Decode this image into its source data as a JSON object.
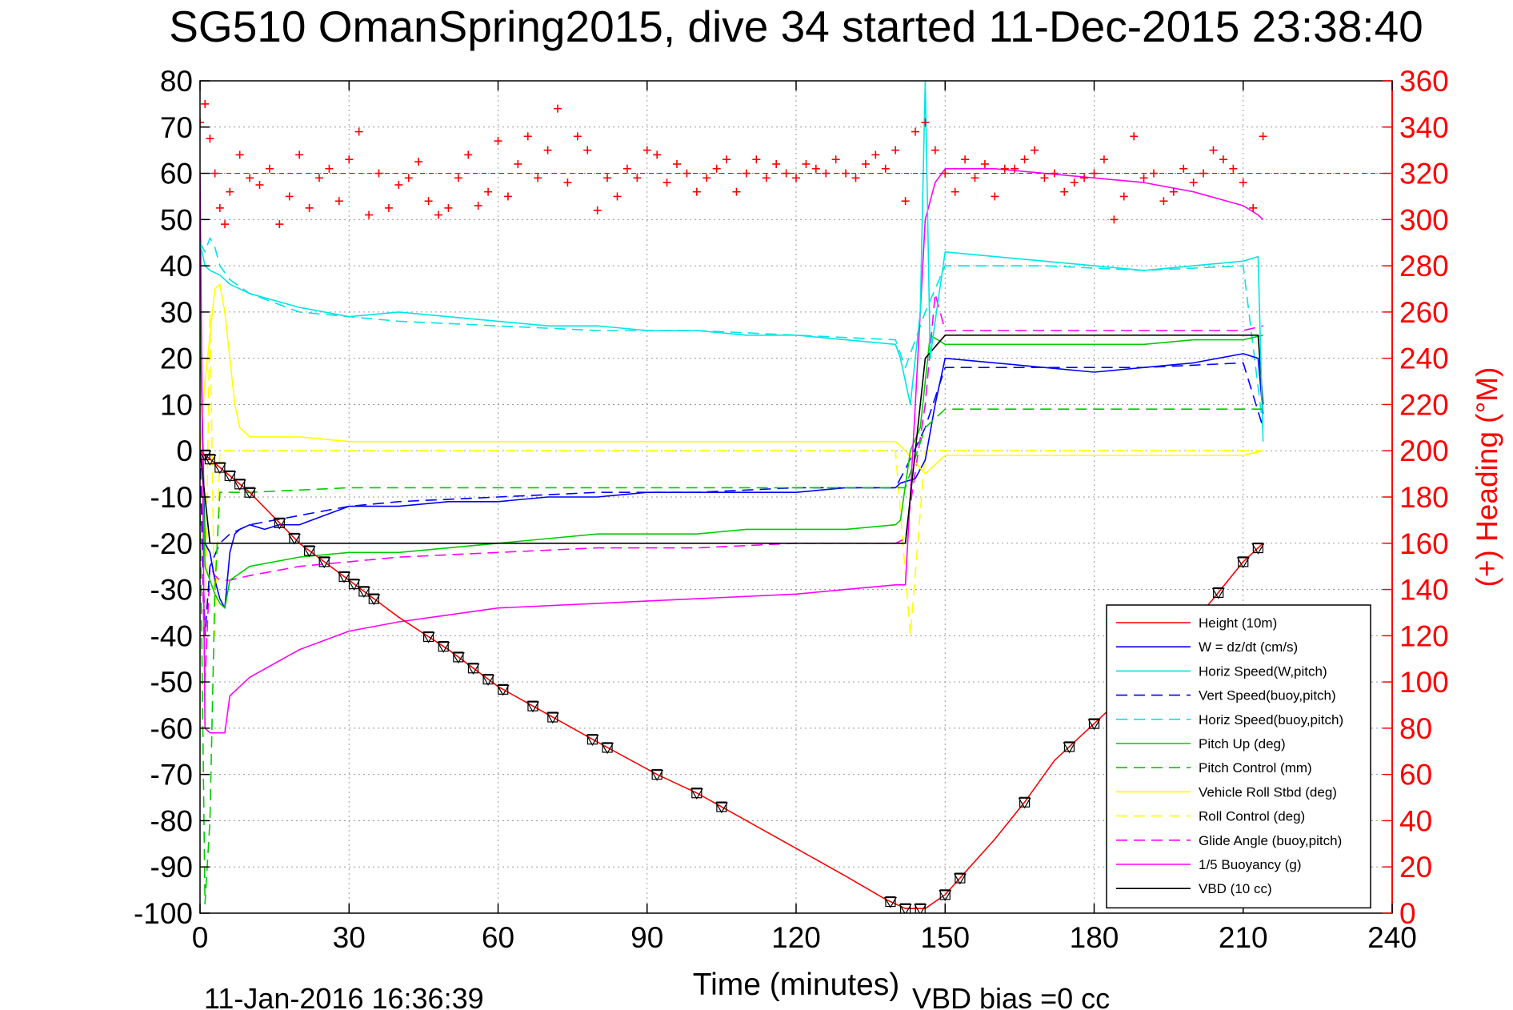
{
  "chart_data": {
    "type": "line",
    "title": "SG510 OmanSpring2015, dive 34 started 11-Dec-2015 23:38:40",
    "xlabel": "Time (minutes)",
    "ylabel_left": "",
    "ylabel_right": "(+) Heading (°M)",
    "xlim": [
      0,
      240
    ],
    "ylim_left": [
      -100,
      80
    ],
    "ylim_right": [
      0,
      360
    ],
    "x_ticks": [
      0,
      30,
      60,
      90,
      120,
      150,
      180,
      210,
      240
    ],
    "y_ticks_left": [
      80,
      70,
      60,
      50,
      40,
      30,
      20,
      10,
      0,
      -10,
      -20,
      -30,
      -40,
      -50,
      -60,
      -70,
      -80,
      -90,
      -100
    ],
    "y_ticks_right": [
      360,
      340,
      320,
      300,
      280,
      260,
      240,
      220,
      200,
      180,
      160,
      140,
      120,
      100,
      80,
      60,
      40,
      20,
      0
    ],
    "grid": true,
    "legend_location": "bottom-right",
    "footer_date": "11-Jan-2016 16:36:39",
    "footer_bias": "VBD bias =0 cc",
    "heading_reference_line": 320,
    "series": [
      {
        "name": "Height (10m)",
        "color": "#ff0000",
        "dash": "solid",
        "axis": "left",
        "x": [
          0,
          10,
          20,
          30,
          40,
          50,
          60,
          70,
          80,
          92,
          100,
          110,
          120,
          130,
          138,
          142,
          146,
          150,
          155,
          160,
          166,
          172,
          178,
          184,
          190,
          196,
          204,
          210,
          214
        ],
        "y": [
          0,
          -9,
          -20,
          -28,
          -36,
          -43,
          -51,
          -57,
          -63,
          -70,
          -74,
          -80,
          -86,
          -92,
          -97,
          -99,
          -99,
          -96,
          -90,
          -84,
          -76,
          -67,
          -61,
          -55,
          -49,
          -42,
          -32,
          -24,
          -20
        ]
      },
      {
        "name": "W = dz/dt (cm/s)",
        "color": "#0000ff",
        "dash": "solid",
        "axis": "left",
        "x": [
          0,
          1,
          2,
          3,
          4,
          5,
          6,
          7,
          8,
          10,
          13,
          16,
          20,
          25,
          30,
          40,
          50,
          60,
          70,
          80,
          90,
          100,
          110,
          120,
          130,
          140,
          141,
          144,
          146,
          148,
          150,
          160,
          170,
          180,
          190,
          200,
          210,
          213,
          214
        ],
        "y": [
          30,
          -20,
          -22,
          -28,
          -32,
          -34,
          -22,
          -18,
          -17,
          -16,
          -17,
          -16,
          -16,
          -14,
          -12,
          -12,
          -11,
          -11,
          -10,
          -10,
          -9,
          -9,
          -9,
          -9,
          -8,
          -8,
          -7,
          -6,
          -2,
          10,
          20,
          19,
          18,
          17,
          18,
          19,
          21,
          20,
          8
        ]
      },
      {
        "name": "Horiz Speed(W,pitch)",
        "color": "#00e5e5",
        "dash": "solid",
        "axis": "left",
        "x": [
          0,
          1,
          2,
          4,
          6,
          10,
          20,
          30,
          40,
          50,
          60,
          70,
          80,
          90,
          100,
          110,
          120,
          130,
          140,
          141,
          143,
          145,
          146,
          147,
          148,
          150,
          160,
          170,
          180,
          190,
          200,
          210,
          213,
          214
        ],
        "y": [
          45,
          40,
          39,
          38,
          36,
          34,
          31,
          29,
          30,
          29,
          28,
          27,
          27,
          26,
          26,
          25,
          25,
          24,
          23,
          20,
          10,
          30,
          80,
          20,
          28,
          43,
          42,
          41,
          40,
          39,
          40,
          41,
          42,
          2
        ]
      },
      {
        "name": "Vert Speed(buoy,pitch)",
        "color": "#0000ff",
        "dash": "dashed",
        "axis": "left",
        "x": [
          0,
          1,
          2,
          4,
          6,
          10,
          20,
          30,
          40,
          60,
          80,
          100,
          120,
          140,
          142,
          146,
          150,
          170,
          190,
          210,
          214
        ],
        "y": [
          0,
          -40,
          -25,
          -20,
          -18,
          -16,
          -14,
          -12,
          -11,
          -10,
          -9,
          -9,
          -8,
          -8,
          -4,
          5,
          18,
          18,
          18,
          19,
          5
        ]
      },
      {
        "name": "Horiz Speed(buoy,pitch)",
        "color": "#00e5e5",
        "dash": "dashed",
        "axis": "left",
        "x": [
          0,
          1,
          2,
          3,
          4,
          6,
          10,
          20,
          30,
          40,
          60,
          80,
          100,
          120,
          140,
          142,
          146,
          150,
          170,
          190,
          210,
          214
        ],
        "y": [
          45,
          43,
          46,
          44,
          40,
          37,
          34,
          30,
          29,
          28,
          27,
          26,
          26,
          25,
          24,
          18,
          30,
          40,
          40,
          39,
          40,
          5
        ]
      },
      {
        "name": "Pitch Up (deg)",
        "color": "#00cc00",
        "dash": "solid",
        "axis": "left",
        "x": [
          0,
          1,
          2,
          3,
          4,
          5,
          6,
          10,
          20,
          30,
          40,
          50,
          60,
          70,
          80,
          90,
          100,
          110,
          120,
          130,
          140,
          141,
          143,
          145,
          147,
          150,
          160,
          170,
          180,
          190,
          200,
          210,
          214
        ],
        "y": [
          30,
          -25,
          -28,
          -31,
          -33,
          -34,
          -28,
          -25,
          -23,
          -22,
          -22,
          -21,
          -20,
          -19,
          -18,
          -18,
          -18,
          -17,
          -17,
          -17,
          -16,
          -15,
          0,
          5,
          25,
          23,
          23,
          23,
          23,
          23,
          24,
          24,
          25
        ]
      },
      {
        "name": "Pitch Control (mm)",
        "color": "#00cc00",
        "dash": "dashed",
        "axis": "left",
        "x": [
          0,
          1,
          2,
          3,
          4,
          6,
          10,
          30,
          60,
          90,
          120,
          140,
          142,
          146,
          150,
          180,
          214
        ],
        "y": [
          -10,
          -98,
          -80,
          -30,
          -9,
          -9,
          -9,
          -8,
          -8,
          -8,
          -8,
          -8,
          -8,
          5,
          9,
          9,
          9
        ]
      },
      {
        "name": "Vehicle Roll Stbd (deg)",
        "color": "#ffff00",
        "dash": "solid",
        "axis": "left",
        "x": [
          0,
          1,
          2,
          3,
          4,
          5,
          6,
          7,
          8,
          10,
          20,
          30,
          40,
          60,
          80,
          100,
          120,
          140,
          142,
          146,
          150,
          170,
          190,
          210,
          214
        ],
        "y": [
          0,
          15,
          25,
          35,
          36,
          30,
          20,
          10,
          5,
          3,
          3,
          2,
          2,
          2,
          2,
          2,
          2,
          2,
          0,
          -5,
          -1,
          -1,
          -1,
          -1,
          0
        ]
      },
      {
        "name": "Roll Control (deg)",
        "color": "#ffff00",
        "dash": "dashed",
        "axis": "left",
        "x": [
          0,
          1,
          2,
          3,
          4,
          6,
          10,
          30,
          60,
          90,
          120,
          140,
          143,
          146,
          150,
          180,
          214
        ],
        "y": [
          0,
          -40,
          30,
          -40,
          0,
          0,
          0,
          0,
          0,
          0,
          0,
          0,
          -40,
          0,
          0,
          0,
          0
        ]
      },
      {
        "name": "Glide Angle (buoy,pitch)",
        "color": "#ff00ff",
        "dash": "dashed",
        "axis": "left",
        "x": [
          0,
          1,
          2,
          3,
          4,
          6,
          10,
          20,
          30,
          40,
          60,
          80,
          100,
          120,
          140,
          142,
          146,
          148,
          150,
          170,
          190,
          210,
          214
        ],
        "y": [
          0,
          -50,
          -25,
          -27,
          -28,
          -28,
          -27,
          -25,
          -24,
          -23,
          -22,
          -21,
          -21,
          -20,
          -20,
          -19,
          10,
          34,
          26,
          26,
          26,
          26,
          27
        ]
      },
      {
        "name": "1/5 Buoyancy (g)",
        "color": "#ff00ff",
        "dash": "solid",
        "axis": "left",
        "x": [
          0,
          1,
          2,
          5,
          6,
          10,
          20,
          30,
          40,
          60,
          80,
          100,
          120,
          140,
          142,
          144,
          146,
          148,
          150,
          160,
          170,
          180,
          190,
          200,
          210,
          213,
          214
        ],
        "y": [
          60,
          -60,
          -61,
          -61,
          -53,
          -49,
          -43,
          -39,
          -37,
          -34,
          -33,
          -32,
          -31,
          -29,
          -29,
          10,
          50,
          58,
          61,
          61,
          60,
          59,
          58,
          56,
          53,
          51,
          50
        ]
      },
      {
        "name": "VBD (10 cc)",
        "color": "#000000",
        "dash": "solid",
        "axis": "left",
        "x": [
          0,
          1,
          2,
          5,
          10,
          30,
          60,
          90,
          120,
          140,
          142,
          146,
          150,
          180,
          213,
          214
        ],
        "y": [
          0,
          -10,
          -20,
          -20,
          -20,
          -20,
          -20,
          -20,
          -20,
          -20,
          -20,
          20,
          25,
          25,
          25,
          10
        ]
      }
    ],
    "heading_data": {
      "name": "Heading",
      "axis": "right",
      "color": "#ff0000",
      "marker": "+",
      "x": [
        0,
        1,
        2,
        3,
        4,
        5,
        6,
        8,
        10,
        12,
        14,
        16,
        18,
        20,
        22,
        24,
        26,
        28,
        30,
        32,
        34,
        36,
        38,
        40,
        42,
        44,
        46,
        48,
        50,
        52,
        54,
        56,
        58,
        60,
        62,
        64,
        66,
        68,
        70,
        72,
        74,
        76,
        78,
        80,
        82,
        84,
        86,
        88,
        90,
        92,
        94,
        96,
        98,
        100,
        102,
        104,
        106,
        108,
        110,
        112,
        114,
        116,
        118,
        120,
        122,
        124,
        126,
        128,
        130,
        132,
        134,
        136,
        138,
        140,
        142,
        144,
        146,
        148,
        150,
        152,
        154,
        156,
        158,
        160,
        162,
        164,
        166,
        168,
        170,
        172,
        174,
        176,
        178,
        180,
        182,
        184,
        186,
        188,
        190,
        192,
        194,
        196,
        198,
        200,
        202,
        204,
        206,
        208,
        210,
        212,
        214
      ],
      "y": [
        342,
        350,
        335,
        320,
        305,
        298,
        312,
        328,
        318,
        315,
        322,
        298,
        310,
        328,
        305,
        318,
        322,
        308,
        326,
        338,
        302,
        320,
        305,
        315,
        318,
        325,
        308,
        302,
        305,
        318,
        328,
        306,
        312,
        334,
        310,
        324,
        336,
        318,
        330,
        348,
        316,
        336,
        330,
        304,
        318,
        310,
        322,
        318,
        330,
        328,
        316,
        324,
        320,
        312,
        318,
        322,
        326,
        312,
        320,
        326,
        318,
        324,
        320,
        318,
        324,
        322,
        320,
        326,
        320,
        318,
        324,
        328,
        322,
        330,
        308,
        338,
        342,
        330,
        320,
        312,
        326,
        318,
        324,
        310,
        322,
        322,
        326,
        330,
        318,
        320,
        312,
        316,
        318,
        320,
        326,
        300,
        310,
        336,
        318,
        320,
        308,
        312,
        322,
        316,
        320,
        330,
        326,
        322,
        316,
        305,
        336
      ]
    },
    "depth_markers": {
      "marker": "triangle-box",
      "color": "#000000",
      "x": [
        1,
        2,
        4,
        6,
        8,
        10,
        16,
        19,
        22,
        25,
        29,
        31,
        33,
        35,
        46,
        49,
        52,
        55,
        58,
        61,
        67,
        71,
        79,
        82,
        92,
        100,
        105,
        139,
        142,
        145,
        150,
        153,
        166,
        175,
        180,
        186,
        201,
        205,
        210,
        213
      ]
    }
  }
}
